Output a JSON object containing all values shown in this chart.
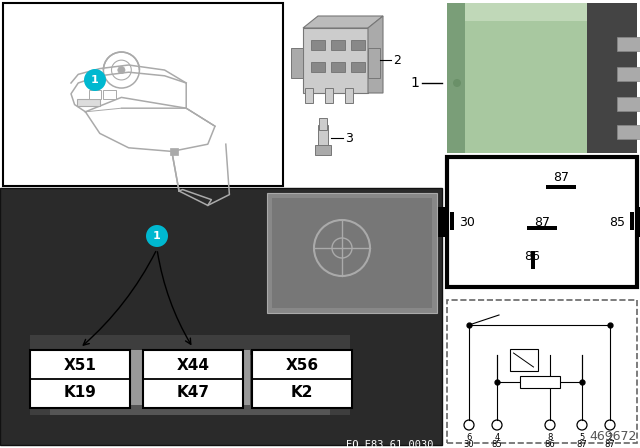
{
  "bg_color": "#ffffff",
  "part_number": "469672",
  "eo_code": "EO E83 61 0030",
  "relay_boxes": [
    {
      "label1": "K19",
      "label2": "X51"
    },
    {
      "label1": "K47",
      "label2": "X44"
    },
    {
      "label1": "K2",
      "label2": "X56"
    }
  ],
  "relay_color": "#a8c8a0",
  "relay_dark": "#7a9e78",
  "relay_side": "#5a7a58",
  "bubble_color": "#00b8d0",
  "car_line_color": "#aaaaaa",
  "photo_bg": "#2a2a2a",
  "photo_mid": "#555555",
  "photo_light": "#888888",
  "inset_bg": "#777777",
  "socket_color": "#cccccc",
  "socket_dark": "#aaaaaa",
  "pin_color": "#999999"
}
